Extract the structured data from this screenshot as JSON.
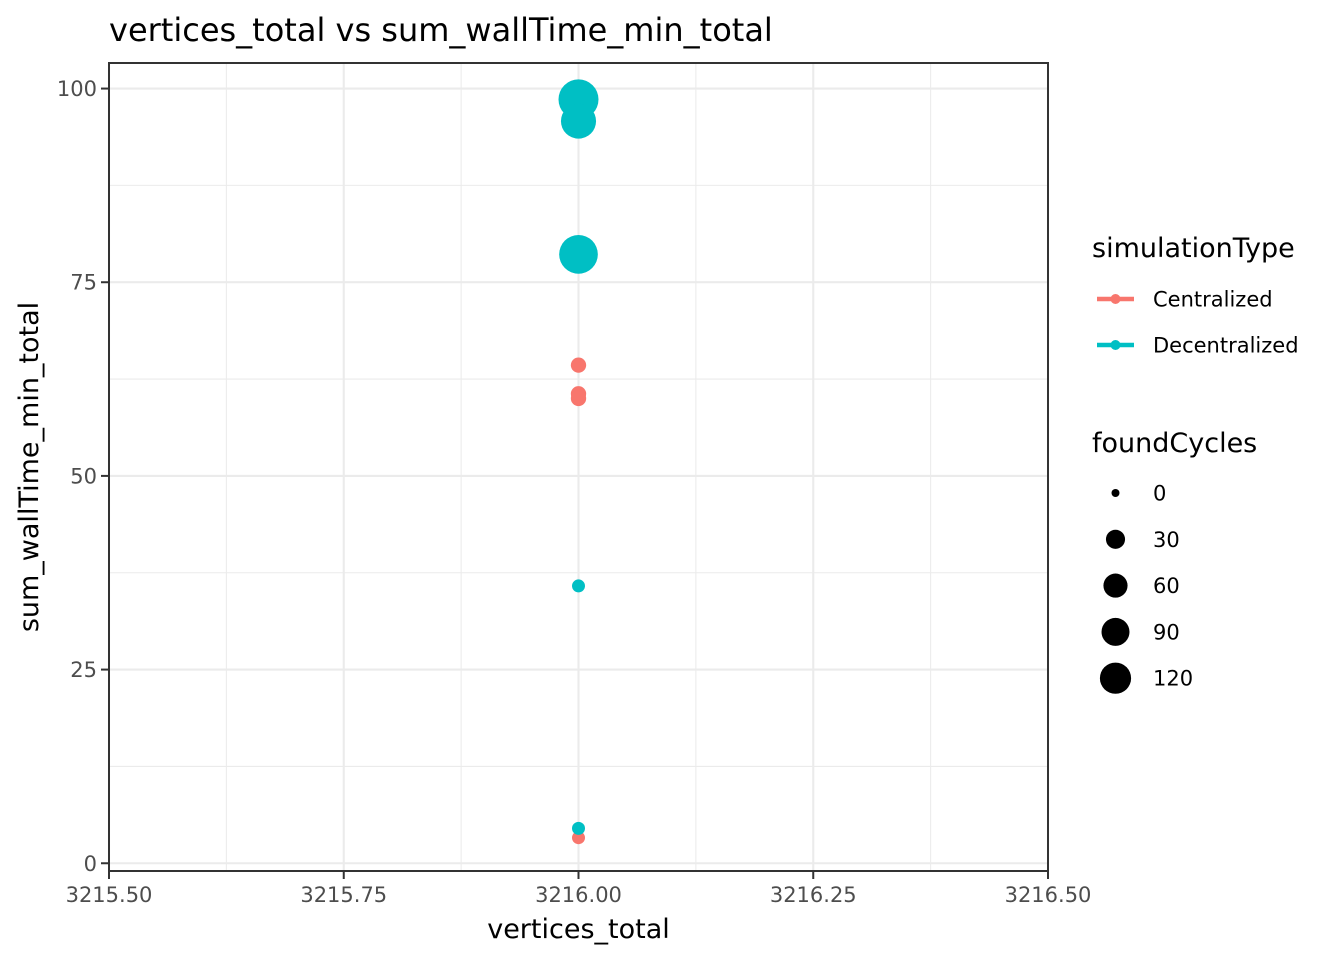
{
  "chart_data": {
    "type": "scatter",
    "title": "vertices_total  vs  sum_wallTime_min_total",
    "xlabel": "vertices_total",
    "ylabel": "sum_wallTime_min_total",
    "xlim": [
      3215.5,
      3216.5
    ],
    "ylim": [
      -1,
      103.3
    ],
    "x_ticks": [
      3215.5,
      3215.75,
      3216.0,
      3216.25,
      3216.5
    ],
    "x_tick_labels": [
      "3215.50",
      "3215.75",
      "3216.00",
      "3216.25",
      "3216.50"
    ],
    "y_ticks": [
      0,
      25,
      50,
      75,
      100
    ],
    "y_tick_labels": [
      "0",
      "25",
      "50",
      "75",
      "100"
    ],
    "grid": true,
    "color_legend": {
      "title": "simulationType",
      "entries": [
        {
          "label": "Centralized",
          "color": "#F8766D"
        },
        {
          "label": "Decentralized",
          "color": "#00BFC4"
        }
      ]
    },
    "size_legend": {
      "title": "foundCycles",
      "entries": [
        {
          "label": "0",
          "value": 0
        },
        {
          "label": "30",
          "value": 30
        },
        {
          "label": "60",
          "value": 60
        },
        {
          "label": "90",
          "value": 90
        },
        {
          "label": "120",
          "value": 120
        }
      ]
    },
    "legend_position": "right",
    "size_range": [
      0,
      120
    ],
    "series": [
      {
        "name": "Centralized",
        "color": "#F8766D",
        "points": [
          {
            "x": 3216.0,
            "y": 64.3,
            "size": 5
          },
          {
            "x": 3216.0,
            "y": 60.6,
            "size": 5
          },
          {
            "x": 3216.0,
            "y": 60.0,
            "size": 5
          },
          {
            "x": 3216.0,
            "y": 3.3,
            "size": 2
          }
        ]
      },
      {
        "name": "Decentralized",
        "color": "#00BFC4",
        "points": [
          {
            "x": 3216.0,
            "y": 98.6,
            "size": 120
          },
          {
            "x": 3216.0,
            "y": 95.8,
            "size": 85
          },
          {
            "x": 3216.0,
            "y": 78.6,
            "size": 110
          },
          {
            "x": 3216.0,
            "y": 35.8,
            "size": 2
          },
          {
            "x": 3216.0,
            "y": 4.5,
            "size": 2
          }
        ]
      }
    ]
  }
}
